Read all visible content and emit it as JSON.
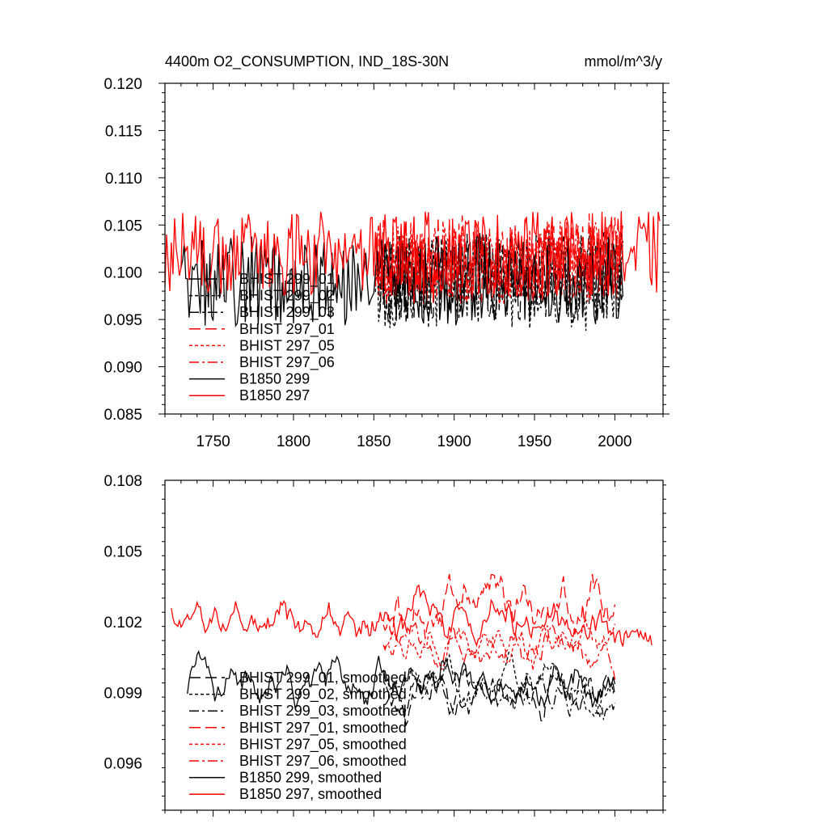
{
  "chart_data": [
    {
      "type": "line",
      "title": "4400m O2_CONSUMPTION, IND_18S-30N",
      "units": "mmol/m^3/y",
      "xlabel": "",
      "ylabel": "",
      "xlim": [
        1720,
        2030
      ],
      "ylim": [
        0.085,
        0.12
      ],
      "x_ticks": [
        1750,
        1800,
        1850,
        1900,
        1950,
        2000
      ],
      "x_tick_labels": [
        "1750",
        "1800",
        "1850",
        "1900",
        "1950",
        "2000"
      ],
      "y_ticks": [
        0.085,
        0.09,
        0.095,
        0.1,
        0.105,
        0.11,
        0.115,
        0.12
      ],
      "y_tick_labels": [
        "0.085",
        "0.090",
        "0.095",
        "0.100",
        "0.105",
        "0.110",
        "0.115",
        "0.120"
      ],
      "legend_position": "left-middle",
      "legend": [
        "BHIST 299_01",
        "BHIST 299_02",
        "BHIST 299_03",
        "BHIST 297_01",
        "BHIST 297_05",
        "BHIST 297_06",
        "B1850 299",
        "B1850 297"
      ],
      "series": [
        {
          "name": "BHIST 299_01",
          "color": "#000000",
          "dash": "14,6",
          "x_start": 1851,
          "x_end": 2005,
          "mean": 0.0995,
          "amp": 0.0048,
          "seed": 11,
          "smooth": 1
        },
        {
          "name": "BHIST 299_02",
          "color": "#000000",
          "dash": "4,3",
          "x_start": 1851,
          "x_end": 2005,
          "mean": 0.099,
          "amp": 0.0052,
          "seed": 12,
          "smooth": 1
        },
        {
          "name": "BHIST 299_03",
          "color": "#000000",
          "dash": "12,4,3,4",
          "x_start": 1851,
          "x_end": 2005,
          "mean": 0.0995,
          "amp": 0.0046,
          "seed": 13,
          "smooth": 1
        },
        {
          "name": "BHIST 297_01",
          "color": "#ff0000",
          "dash": "14,6",
          "x_start": 1851,
          "x_end": 2005,
          "mean": 0.1015,
          "amp": 0.0048,
          "seed": 14,
          "smooth": 1
        },
        {
          "name": "BHIST 297_05",
          "color": "#ff0000",
          "dash": "4,3",
          "x_start": 1851,
          "x_end": 2005,
          "mean": 0.101,
          "amp": 0.0045,
          "seed": 15,
          "smooth": 1
        },
        {
          "name": "BHIST 297_06",
          "color": "#ff0000",
          "dash": "12,4,3,4",
          "x_start": 1851,
          "x_end": 2005,
          "mean": 0.1012,
          "amp": 0.0046,
          "seed": 16,
          "smooth": 1
        },
        {
          "name": "B1850 299",
          "color": "#000000",
          "dash": "",
          "x_start": 1730,
          "x_end": 2005,
          "mean": 0.099,
          "amp": 0.0048,
          "seed": 17,
          "smooth": 1
        },
        {
          "name": "B1850 297",
          "color": "#ff0000",
          "dash": "",
          "x_start": 1720,
          "x_end": 2028,
          "mean": 0.102,
          "amp": 0.0045,
          "seed": 18,
          "smooth": 1
        }
      ]
    },
    {
      "type": "line",
      "title": "",
      "xlabel": "",
      "ylabel": "",
      "xlim": [
        1720,
        2030
      ],
      "ylim": [
        0.094,
        0.108
      ],
      "x_ticks": [
        1750,
        1800,
        1850,
        1900,
        1950,
        2000
      ],
      "x_tick_labels": [],
      "y_ticks": [
        0.096,
        0.099,
        0.102,
        0.105,
        0.108
      ],
      "y_tick_labels": [
        "0.096",
        "0.099",
        "0.102",
        "0.105",
        "0.108"
      ],
      "legend_position": "bottom-left",
      "legend": [
        "BHIST 299_01, smoothed",
        "BHIST 299_02, smoothed",
        "BHIST 299_03, smoothed",
        "BHIST 297_01, smoothed",
        "BHIST 297_05, smoothed",
        "BHIST 297_06, smoothed",
        "B1850 299, smoothed",
        "B1850 297, smoothed"
      ],
      "series": [
        {
          "name": "BHIST 299_01, smoothed",
          "color": "#000000",
          "dash": "14,6",
          "x_start": 1856,
          "x_end": 2000,
          "mean": 0.099,
          "amp": 0.0025,
          "seed": 21,
          "smooth": 7
        },
        {
          "name": "BHIST 299_02, smoothed",
          "color": "#000000",
          "dash": "4,3",
          "x_start": 1856,
          "x_end": 2000,
          "mean": 0.0995,
          "amp": 0.0022,
          "seed": 22,
          "smooth": 7
        },
        {
          "name": "BHIST 299_03, smoothed",
          "color": "#000000",
          "dash": "12,4,3,4",
          "x_start": 1856,
          "x_end": 2000,
          "mean": 0.099,
          "amp": 0.0022,
          "seed": 23,
          "smooth": 7
        },
        {
          "name": "BHIST 297_01, smoothed",
          "color": "#ff0000",
          "dash": "14,6",
          "x_start": 1856,
          "x_end": 2000,
          "mean": 0.1025,
          "amp": 0.003,
          "seed": 24,
          "smooth": 7
        },
        {
          "name": "BHIST 297_05, smoothed",
          "color": "#ff0000",
          "dash": "4,3",
          "x_start": 1856,
          "x_end": 2000,
          "mean": 0.101,
          "amp": 0.002,
          "seed": 25,
          "smooth": 7
        },
        {
          "name": "BHIST 297_06, smoothed",
          "color": "#ff0000",
          "dash": "12,4,3,4",
          "x_start": 1856,
          "x_end": 2000,
          "mean": 0.101,
          "amp": 0.002,
          "seed": 26,
          "smooth": 7
        },
        {
          "name": "B1850 299, smoothed",
          "color": "#000000",
          "dash": "",
          "x_start": 1734,
          "x_end": 2000,
          "mean": 0.0995,
          "amp": 0.0025,
          "seed": 27,
          "smooth": 7
        },
        {
          "name": "B1850 297, smoothed",
          "color": "#ff0000",
          "dash": "",
          "x_start": 1724,
          "x_end": 2023,
          "mean": 0.102,
          "amp": 0.0025,
          "seed": 28,
          "smooth": 7
        }
      ]
    }
  ]
}
